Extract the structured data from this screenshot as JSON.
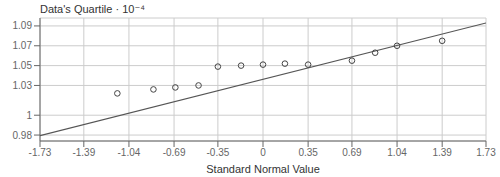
{
  "chart_data": {
    "type": "scatter",
    "xlabel": "Standard Normal Value",
    "ylabel": "Data's Quartile · 10⁻⁴",
    "xlim": [
      -1.73,
      1.73
    ],
    "xticks": [
      -1.73,
      -1.39,
      -1.04,
      -0.69,
      -0.35,
      0,
      0.35,
      0.69,
      1.04,
      1.39,
      1.73
    ],
    "ylim": [
      0.974,
      1.098
    ],
    "yticks": [
      0.98,
      1,
      1.03,
      1.05,
      1.07,
      1.09
    ],
    "grid": true,
    "series": [
      {
        "type": "line",
        "color": "#555555",
        "x": [
          -1.73,
          1.73
        ],
        "values": [
          0.9795,
          1.093
        ]
      },
      {
        "type": "scatter",
        "color": "#444444",
        "x": [
          -1.13,
          -0.85,
          -0.68,
          -0.5,
          -0.35,
          -0.17,
          0.0,
          0.17,
          0.35,
          0.69,
          0.87,
          1.04,
          1.39
        ],
        "values": [
          1.022,
          1.026,
          1.028,
          1.03,
          1.049,
          1.05,
          1.051,
          1.052,
          1.051,
          1.055,
          1.063,
          1.07,
          1.075
        ]
      }
    ]
  }
}
